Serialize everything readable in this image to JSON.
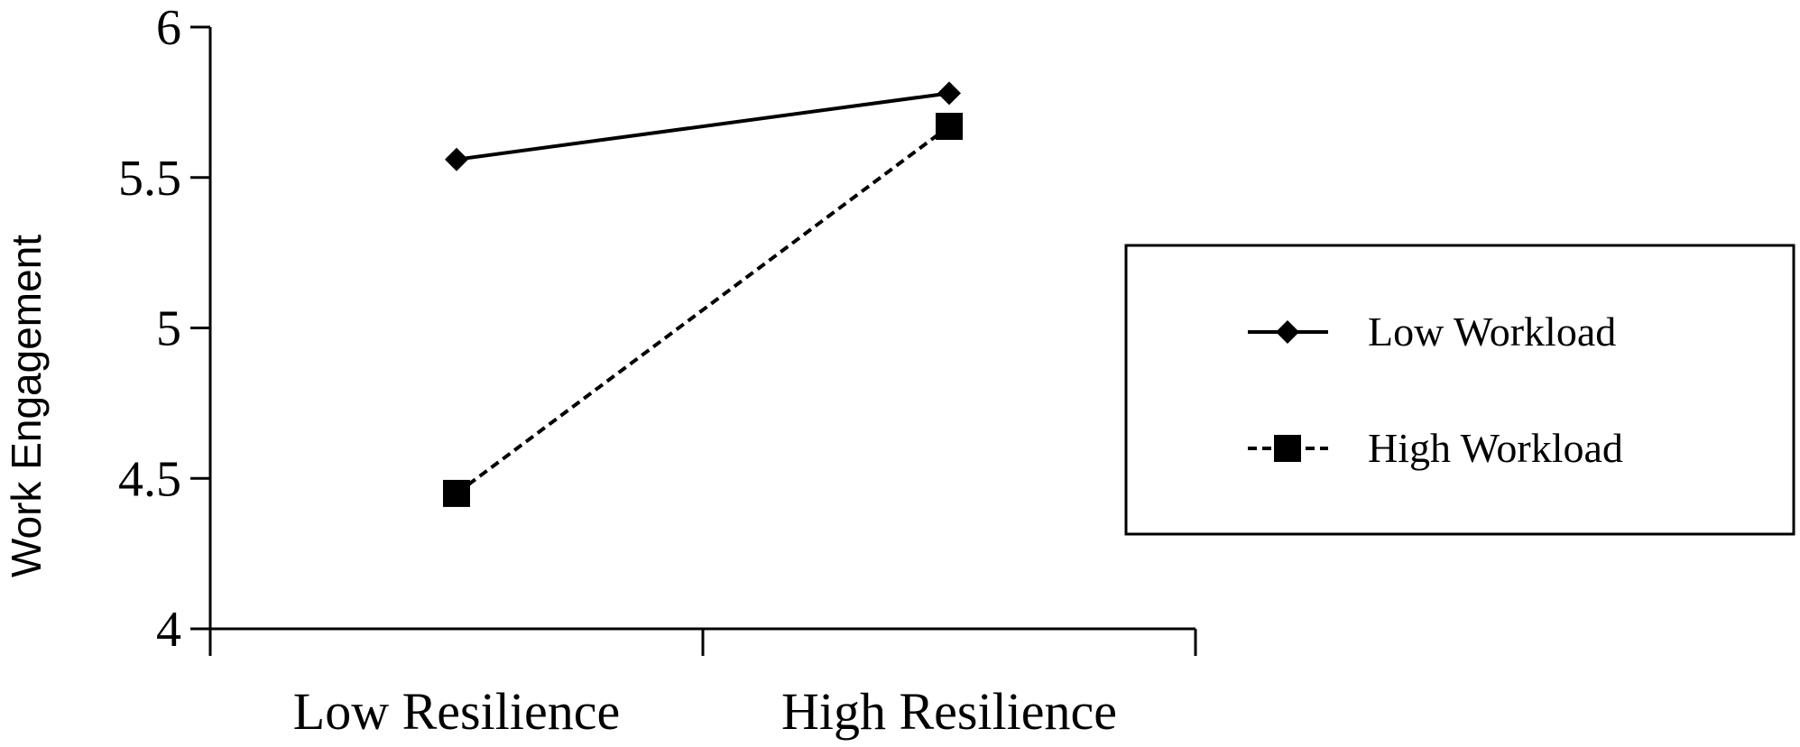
{
  "chart_data": {
    "type": "line",
    "categories": [
      "Low Resilience",
      "High Resilience"
    ],
    "series": [
      {
        "name": "Low Workload",
        "values": [
          5.56,
          5.78
        ],
        "marker": "diamond",
        "line": "solid"
      },
      {
        "name": "High Workload",
        "values": [
          4.45,
          5.67
        ],
        "marker": "square",
        "line": "dashed"
      }
    ],
    "title": "",
    "xlabel": "",
    "ylabel": "Work Engagement",
    "ylim": [
      4,
      6
    ],
    "yticks": [
      "4",
      "4.5",
      "5",
      "5.5",
      "6"
    ],
    "grid": false,
    "legend_position": "right",
    "colors": {
      "line": "#000000",
      "background": "#ffffff"
    }
  }
}
